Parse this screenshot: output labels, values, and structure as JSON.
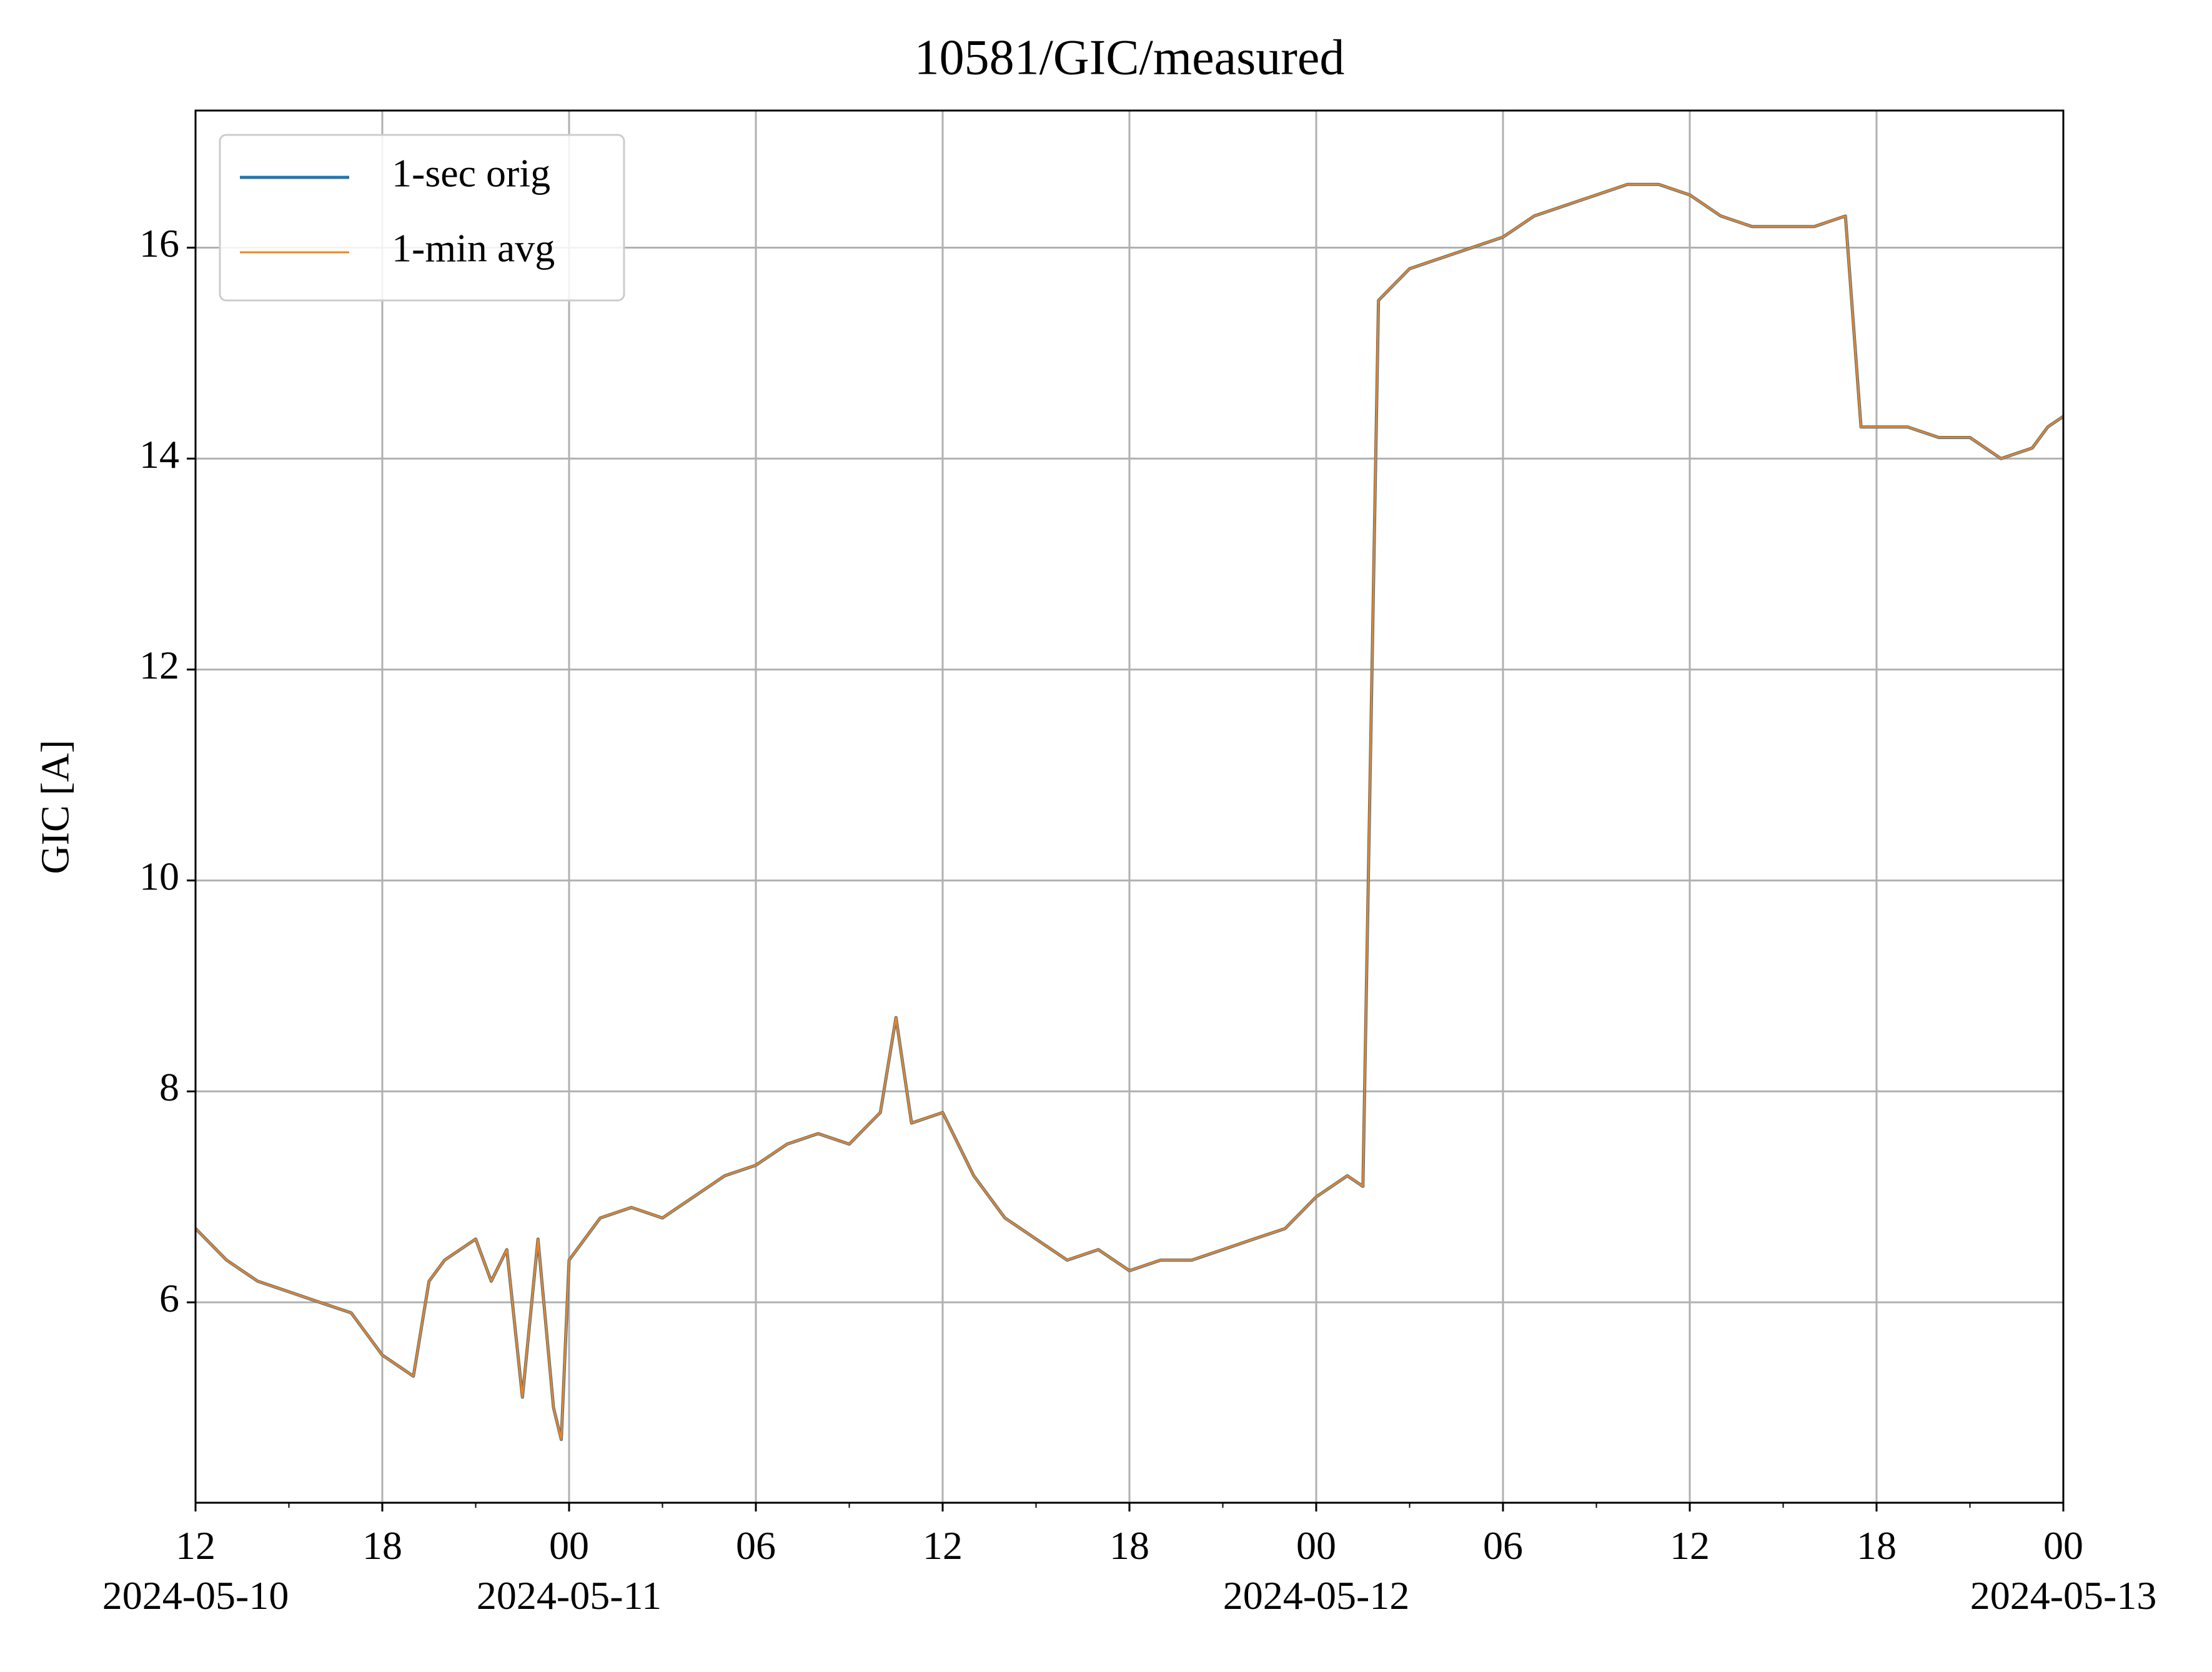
{
  "chart_data": {
    "type": "line",
    "title": "10581/GIC/measured",
    "y_label": "GIC [A]",
    "x": [
      "2024-05-10T12:00",
      "2024-05-10T13:00",
      "2024-05-10T14:00",
      "2024-05-10T15:00",
      "2024-05-10T16:00",
      "2024-05-10T17:00",
      "2024-05-10T17:30",
      "2024-05-10T18:00",
      "2024-05-10T18:30",
      "2024-05-10T19:00",
      "2024-05-10T19:30",
      "2024-05-10T20:00",
      "2024-05-10T21:00",
      "2024-05-10T21:30",
      "2024-05-10T22:00",
      "2024-05-10T22:30",
      "2024-05-10T23:00",
      "2024-05-10T23:30",
      "2024-05-10T23:45",
      "2024-05-11T00:00",
      "2024-05-11T01:00",
      "2024-05-11T02:00",
      "2024-05-11T03:00",
      "2024-05-11T04:00",
      "2024-05-11T05:00",
      "2024-05-11T06:00",
      "2024-05-11T07:00",
      "2024-05-11T08:00",
      "2024-05-11T09:00",
      "2024-05-11T10:00",
      "2024-05-11T10:30",
      "2024-05-11T11:00",
      "2024-05-11T12:00",
      "2024-05-11T13:00",
      "2024-05-11T14:00",
      "2024-05-11T15:00",
      "2024-05-11T16:00",
      "2024-05-11T17:00",
      "2024-05-11T18:00",
      "2024-05-11T19:00",
      "2024-05-11T20:00",
      "2024-05-11T21:00",
      "2024-05-11T22:00",
      "2024-05-11T23:00",
      "2024-05-12T00:00",
      "2024-05-12T01:00",
      "2024-05-12T01:30",
      "2024-05-12T02:00",
      "2024-05-12T03:00",
      "2024-05-12T04:00",
      "2024-05-12T05:00",
      "2024-05-12T06:00",
      "2024-05-12T07:00",
      "2024-05-12T08:00",
      "2024-05-12T09:00",
      "2024-05-12T10:00",
      "2024-05-12T11:00",
      "2024-05-12T12:00",
      "2024-05-12T13:00",
      "2024-05-12T14:00",
      "2024-05-12T15:00",
      "2024-05-12T16:00",
      "2024-05-12T17:00",
      "2024-05-12T17:30",
      "2024-05-12T18:00",
      "2024-05-12T19:00",
      "2024-05-12T20:00",
      "2024-05-12T21:00",
      "2024-05-12T22:00",
      "2024-05-12T23:00",
      "2024-05-12T23:30",
      "2024-05-13T00:00"
    ],
    "series": [
      {
        "name": "1-sec orig",
        "color": "#1f77b4",
        "values": [
          6.7,
          6.4,
          6.2,
          6.1,
          6.0,
          5.9,
          5.7,
          5.5,
          5.4,
          5.3,
          6.2,
          6.4,
          6.6,
          6.2,
          6.5,
          5.1,
          6.6,
          5.0,
          4.7,
          6.4,
          6.8,
          6.9,
          6.8,
          7.0,
          7.2,
          7.3,
          7.5,
          7.6,
          7.5,
          7.8,
          8.7,
          7.7,
          7.8,
          7.2,
          6.8,
          6.6,
          6.4,
          6.5,
          6.3,
          6.4,
          6.4,
          6.5,
          6.6,
          6.7,
          7.0,
          7.2,
          7.1,
          15.5,
          15.8,
          15.9,
          16.0,
          16.1,
          16.3,
          16.4,
          16.5,
          16.6,
          16.6,
          16.5,
          16.3,
          16.2,
          16.2,
          16.2,
          16.3,
          14.3,
          14.3,
          14.3,
          14.2,
          14.2,
          14.0,
          14.1,
          14.3,
          14.4
        ]
      },
      {
        "name": "1-min avg",
        "color": "#ff7f0e",
        "values": [
          6.7,
          6.4,
          6.2,
          6.1,
          6.0,
          5.9,
          5.7,
          5.5,
          5.4,
          5.3,
          6.2,
          6.4,
          6.6,
          6.2,
          6.5,
          5.1,
          6.6,
          5.0,
          4.7,
          6.4,
          6.8,
          6.9,
          6.8,
          7.0,
          7.2,
          7.3,
          7.5,
          7.6,
          7.5,
          7.8,
          8.7,
          7.7,
          7.8,
          7.2,
          6.8,
          6.6,
          6.4,
          6.5,
          6.3,
          6.4,
          6.4,
          6.5,
          6.6,
          6.7,
          7.0,
          7.2,
          7.1,
          15.5,
          15.8,
          15.9,
          16.0,
          16.1,
          16.3,
          16.4,
          16.5,
          16.6,
          16.6,
          16.5,
          16.3,
          16.2,
          16.2,
          16.2,
          16.3,
          14.3,
          14.3,
          14.3,
          14.2,
          14.2,
          14.0,
          14.1,
          14.3,
          14.4
        ]
      }
    ],
    "xlim": [
      "2024-05-10T12:00",
      "2024-05-13T00:00"
    ],
    "xticks": [
      {
        "value": "2024-05-10T12:00",
        "label": "12",
        "date": "2024-05-10"
      },
      {
        "value": "2024-05-10T18:00",
        "label": "18"
      },
      {
        "value": "2024-05-11T00:00",
        "label": "00",
        "date": "2024-05-11"
      },
      {
        "value": "2024-05-11T06:00",
        "label": "06"
      },
      {
        "value": "2024-05-11T12:00",
        "label": "12"
      },
      {
        "value": "2024-05-11T18:00",
        "label": "18"
      },
      {
        "value": "2024-05-12T00:00",
        "label": "00",
        "date": "2024-05-12"
      },
      {
        "value": "2024-05-12T06:00",
        "label": "06"
      },
      {
        "value": "2024-05-12T12:00",
        "label": "12"
      },
      {
        "value": "2024-05-12T18:00",
        "label": "18"
      },
      {
        "value": "2024-05-13T00:00",
        "label": "00",
        "date": "2024-05-13"
      }
    ],
    "xminorticks": [
      "2024-05-10T15:00",
      "2024-05-10T21:00",
      "2024-05-11T03:00",
      "2024-05-11T09:00",
      "2024-05-11T15:00",
      "2024-05-11T21:00",
      "2024-05-12T03:00",
      "2024-05-12T09:00",
      "2024-05-12T15:00",
      "2024-05-12T21:00"
    ],
    "ylim": [
      4.1,
      17.3
    ],
    "yticks": [
      6,
      8,
      10,
      12,
      14,
      16
    ],
    "grid": true,
    "legend": "upper left"
  }
}
